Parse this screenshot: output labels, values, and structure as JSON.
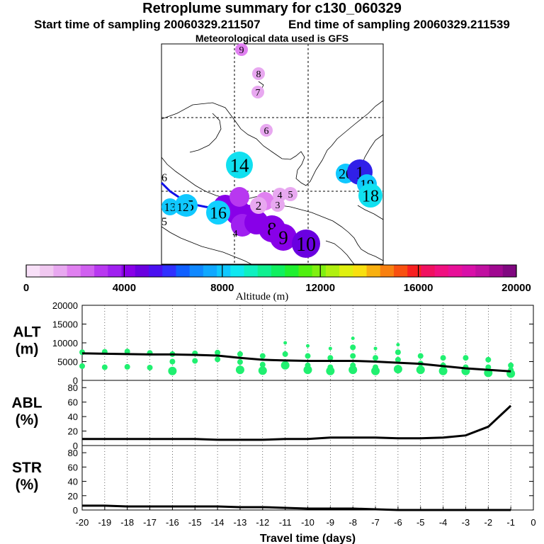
{
  "header": {
    "title": "Retroplume summary for c130_060329",
    "start_label": "Start time of sampling 20060329.211507",
    "end_label": "End time of sampling 20060329.211539",
    "met_label": "Meteorological data used is GFS"
  },
  "colorbar": {
    "label": "Altitude (m)",
    "ticks": [
      "0",
      "4000",
      "8000",
      "12000",
      "16000",
      "20000"
    ],
    "colors": [
      "#f8e0f8",
      "#f0c8f0",
      "#e8a8f0",
      "#e080f0",
      "#d060f0",
      "#b838f0",
      "#a020f0",
      "#8800e8",
      "#6a00e0",
      "#4a10f0",
      "#3030ff",
      "#1060ff",
      "#1088ff",
      "#10a8ff",
      "#10c8ff",
      "#10e8f0",
      "#10f0c0",
      "#10f090",
      "#10f060",
      "#20f030",
      "#50f010",
      "#80f010",
      "#b0f010",
      "#e0f010",
      "#f8e010",
      "#f8b010",
      "#f88010",
      "#f85010",
      "#f82020",
      "#f01060",
      "#f01080",
      "#e81098",
      "#d810a8",
      "#c010a0",
      "#a00890",
      "#800880"
    ]
  },
  "map": {
    "day_markers": [
      {
        "label": "9",
        "color": "#e080f0",
        "r": 9
      },
      {
        "label": "8",
        "color": "#e8a8f0",
        "r": 9
      },
      {
        "label": "7",
        "color": "#e8a8f0",
        "r": 9
      },
      {
        "label": "6",
        "color": "#e8a8f0",
        "r": 9
      },
      {
        "label": "14",
        "color": "#10e0f0",
        "r": 19
      },
      {
        "label": "20",
        "color": "#10c8ff",
        "r": 14
      },
      {
        "label": "1",
        "color": "#3020e8",
        "r": 18
      },
      {
        "label": "19",
        "color": "#10c8ff",
        "r": 14
      },
      {
        "label": "18",
        "color": "#10e0f0",
        "r": 17
      },
      {
        "label": "4",
        "color": "#e8a8f0",
        "r": 10
      },
      {
        "label": "5",
        "color": "#e8a8f0",
        "r": 10
      },
      {
        "label": "3",
        "color": "#e8a8f0",
        "r": 10
      },
      {
        "label": "2",
        "color": "#e8a8f0",
        "r": 12
      },
      {
        "label": "15",
        "color": "#10c8ff",
        "r": 16
      },
      {
        "label": "16",
        "color": "#10d0ff",
        "r": 17
      },
      {
        "label": "13",
        "color": "#10c8ff",
        "r": 12
      },
      {
        "label": "12",
        "color": "#10c8ff",
        "r": 12
      },
      {
        "label": "8",
        "color": "#8800e8",
        "r": 19
      },
      {
        "label": "9",
        "color": "#8800e8",
        "r": 19
      },
      {
        "label": "10",
        "color": "#6a00e0",
        "r": 20
      }
    ],
    "small_labels": [
      "4",
      "5"
    ]
  },
  "chart_data": [
    {
      "type": "line",
      "ylabel": "ALT (m)",
      "x": [
        -20,
        -19,
        -18,
        -17,
        -16,
        -15,
        -14,
        -13,
        -12,
        -11,
        -10,
        -9,
        -8,
        -7,
        -6,
        -5,
        -4,
        -3,
        -2,
        -1
      ],
      "xlim": [
        -20,
        0
      ],
      "ylim": [
        0,
        20000
      ],
      "yticks": [
        0,
        5000,
        10000,
        15000,
        20000
      ],
      "series": [
        {
          "name": "mean altitude",
          "values": [
            7200,
            7100,
            7000,
            6900,
            6900,
            6800,
            6600,
            6000,
            5500,
            5300,
            5200,
            5200,
            5200,
            5000,
            4700,
            4400,
            3800,
            3200,
            2800,
            2400
          ]
        }
      ],
      "scatter": [
        {
          "x": -20,
          "ys": [
            7500,
            3800
          ]
        },
        {
          "x": -19,
          "ys": [
            7600,
            3500
          ]
        },
        {
          "x": -18,
          "ys": [
            7700,
            3600
          ]
        },
        {
          "x": -17,
          "ys": [
            7300,
            3400
          ]
        },
        {
          "x": -16,
          "ys": [
            7000,
            5000,
            2500
          ]
        },
        {
          "x": -15,
          "ys": [
            7200,
            5200
          ]
        },
        {
          "x": -14,
          "ys": [
            7400,
            5600
          ]
        },
        {
          "x": -13,
          "ys": [
            7000,
            4900,
            2800
          ]
        },
        {
          "x": -12,
          "ys": [
            6500,
            4200,
            2600
          ]
        },
        {
          "x": -11,
          "ys": [
            10000,
            7000,
            4000
          ]
        },
        {
          "x": -10,
          "ys": [
            9200,
            6500,
            4000,
            2800
          ]
        },
        {
          "x": -9,
          "ys": [
            8500,
            6000,
            3500,
            2500
          ]
        },
        {
          "x": -8,
          "ys": [
            11200,
            8800,
            6500,
            4000,
            2800
          ]
        },
        {
          "x": -7,
          "ys": [
            8500,
            6000,
            3500,
            2500
          ]
        },
        {
          "x": -6,
          "ys": [
            9500,
            7500,
            5500,
            3000
          ]
        },
        {
          "x": -5,
          "ys": [
            6500,
            4500,
            2800
          ]
        },
        {
          "x": -4,
          "ys": [
            6000,
            4000,
            2500
          ]
        },
        {
          "x": -3,
          "ys": [
            6000,
            3500,
            2500
          ]
        },
        {
          "x": -2,
          "ys": [
            5500,
            3500,
            2000
          ]
        },
        {
          "x": -1,
          "ys": [
            4000,
            2800,
            1800
          ]
        }
      ]
    },
    {
      "type": "line",
      "ylabel": "ABL (%)",
      "x": [
        -20,
        -19,
        -18,
        -17,
        -16,
        -15,
        -14,
        -13,
        -12,
        -11,
        -10,
        -9,
        -8,
        -7,
        -6,
        -5,
        -4,
        -3,
        -2,
        -1
      ],
      "xlim": [
        -20,
        0
      ],
      "ylim": [
        0,
        90
      ],
      "yticks": [
        0,
        20,
        40,
        60,
        80
      ],
      "series": [
        {
          "name": "ABL fraction",
          "values": [
            9,
            9,
            9,
            9,
            9,
            9,
            8,
            8,
            8,
            9,
            9,
            11,
            11,
            11,
            10,
            10,
            11,
            14,
            26,
            55
          ]
        }
      ]
    },
    {
      "type": "line",
      "ylabel": "STR (%)",
      "x": [
        -20,
        -19,
        -18,
        -17,
        -16,
        -15,
        -14,
        -13,
        -12,
        -11,
        -10,
        -9,
        -8,
        -7,
        -6,
        -5,
        -4,
        -3,
        -2,
        -1
      ],
      "xlim": [
        -20,
        0
      ],
      "ylim": [
        0,
        90
      ],
      "yticks": [
        0,
        20,
        40,
        60,
        80
      ],
      "xlabel": "Travel time (days)",
      "xticks": [
        -20,
        -19,
        -18,
        -17,
        -16,
        -15,
        -14,
        -13,
        -12,
        -11,
        -10,
        -9,
        -8,
        -7,
        -6,
        -5,
        -4,
        -3,
        -2,
        -1,
        0
      ],
      "series": [
        {
          "name": "stratospheric fraction",
          "values": [
            6,
            6,
            5,
            5,
            5,
            5,
            5,
            4,
            4,
            3,
            2,
            2,
            2,
            1,
            0,
            0,
            0,
            0,
            0,
            0
          ]
        }
      ]
    }
  ]
}
